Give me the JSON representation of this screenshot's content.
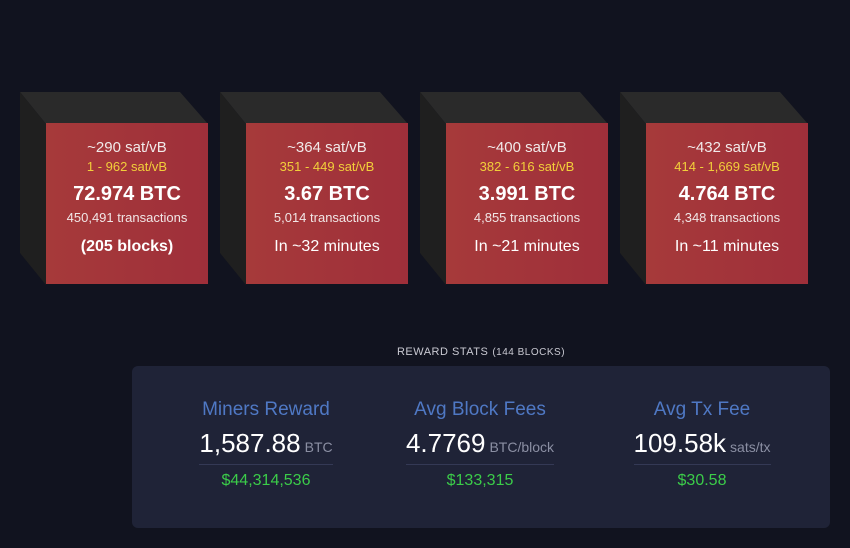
{
  "mempool_blocks": [
    {
      "median_fee": "~290 sat/vB",
      "fee_range": "1 - 962 sat/vB",
      "total_btc": "72.974 BTC",
      "transactions": "450,491 transactions",
      "eta": "(205 blocks)"
    },
    {
      "median_fee": "~364 sat/vB",
      "fee_range": "351 - 449 sat/vB",
      "total_btc": "3.67 BTC",
      "transactions": "5,014 transactions",
      "eta": "In ~32 minutes"
    },
    {
      "median_fee": "~400 sat/vB",
      "fee_range": "382 - 616 sat/vB",
      "total_btc": "3.991 BTC",
      "transactions": "4,855 transactions",
      "eta": "In ~21 minutes"
    },
    {
      "median_fee": "~432 sat/vB",
      "fee_range": "414 - 1,669 sat/vB",
      "total_btc": "4.764 BTC",
      "transactions": "4,348 transactions",
      "eta": "In ~11 minutes"
    }
  ],
  "reward_stats": {
    "title": "REWARD STATS",
    "subtitle": "(144 BLOCKS)",
    "items": [
      {
        "label": "Miners Reward",
        "value": "1,587.88",
        "unit": "BTC",
        "fiat": "$44,314,536"
      },
      {
        "label": "Avg Block Fees",
        "value": "4.7769",
        "unit": "BTC/block",
        "fiat": "$133,315"
      },
      {
        "label": "Avg Tx Fee",
        "value": "109.58k",
        "unit": "sats/tx",
        "fiat": "$30.58"
      }
    ]
  },
  "colors": {
    "background": "#11131f",
    "block_face": "#a63a3a",
    "fee_range": "#f2cf3a",
    "stat_label": "#4f78c4",
    "fiat": "#3bcc49",
    "panel": "#1f2337"
  }
}
